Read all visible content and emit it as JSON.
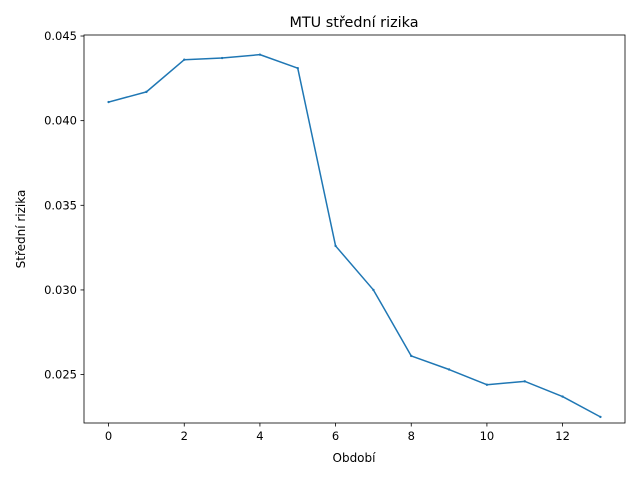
{
  "chart_data": {
    "type": "line",
    "title": "MTU střední rizika",
    "xlabel": "Období",
    "ylabel": "Střední rizika",
    "xlim": [
      -0.65,
      13.65
    ],
    "ylim": [
      0.02214,
      0.04506
    ],
    "xticks": [
      0,
      2,
      4,
      6,
      8,
      10,
      12
    ],
    "xtick_labels": [
      "0",
      "2",
      "4",
      "6",
      "8",
      "10",
      "12"
    ],
    "yticks": [
      0.025,
      0.03,
      0.035,
      0.04,
      0.045
    ],
    "ytick_labels": [
      "0.025",
      "0.030",
      "0.035",
      "0.040",
      "0.045"
    ],
    "grid": false,
    "legend": "none",
    "series": [
      {
        "color": "#1f77b4",
        "x": [
          0,
          1,
          2,
          3,
          4,
          5,
          6,
          7,
          8,
          9,
          10,
          11,
          12,
          13
        ],
        "values": [
          0.0411,
          0.0417,
          0.0436,
          0.0437,
          0.0439,
          0.0431,
          0.0326,
          0.03,
          0.0261,
          0.0253,
          0.0244,
          0.0246,
          0.0237,
          0.0225
        ]
      }
    ]
  }
}
